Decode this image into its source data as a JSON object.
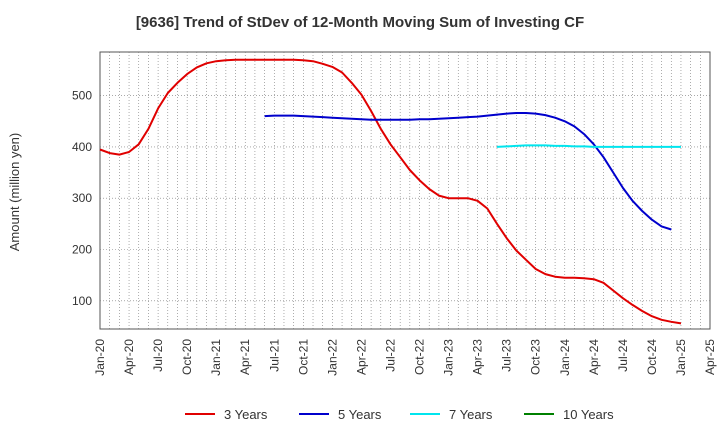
{
  "chart_data": {
    "type": "line",
    "title": "[9636]  Trend of StDev of 12-Month Moving Sum of Investing CF",
    "xlabel": "",
    "ylabel": "Amount (million yen)",
    "x_tick_labels": [
      "Jan-20",
      "Apr-20",
      "Jul-20",
      "Oct-20",
      "Jan-21",
      "Apr-21",
      "Jul-21",
      "Oct-21",
      "Jan-22",
      "Apr-22",
      "Jul-22",
      "Oct-22",
      "Jan-23",
      "Apr-23",
      "Jul-23",
      "Oct-23",
      "Jan-24",
      "Apr-24",
      "Jul-24",
      "Oct-24",
      "Jan-25",
      "Apr-25"
    ],
    "y_ticks": [
      100,
      200,
      300,
      400,
      500
    ],
    "ylim": [
      45,
      585
    ],
    "grid": true,
    "legend_position": "bottom",
    "series": [
      {
        "name": "3 Years",
        "color": "#e00000",
        "start_month": "Jan-20",
        "values": [
          395,
          388,
          385,
          390,
          405,
          435,
          475,
          505,
          525,
          542,
          555,
          563,
          567,
          569,
          570,
          570,
          570,
          570,
          570,
          570,
          570,
          569,
          567,
          562,
          556,
          545,
          525,
          502,
          470,
          435,
          405,
          380,
          355,
          335,
          318,
          305,
          300,
          300,
          300,
          295,
          280,
          250,
          222,
          198,
          180,
          162,
          152,
          147,
          145,
          145,
          144,
          142,
          135,
          120,
          105,
          92,
          80,
          70,
          63,
          59,
          56
        ]
      },
      {
        "name": "5 Years",
        "color": "#0000cc",
        "start_month": "Jun-21",
        "values": [
          460,
          461,
          461,
          461,
          460,
          459,
          458,
          457,
          456,
          455,
          454,
          453,
          453,
          453,
          453,
          453,
          454,
          454,
          455,
          456,
          457,
          458,
          459,
          461,
          463,
          465,
          466,
          466,
          465,
          462,
          457,
          450,
          440,
          425,
          405,
          380,
          350,
          320,
          295,
          275,
          258,
          245,
          239
        ]
      },
      {
        "name": "7 Years",
        "color": "#00e5ee",
        "start_month": "Jun-23",
        "values": [
          400,
          401,
          402,
          403,
          403,
          403,
          402,
          402,
          401,
          401,
          400,
          400,
          400,
          400,
          400,
          400,
          400,
          400,
          400,
          400
        ]
      },
      {
        "name": "10 Years",
        "color": "#008000",
        "start_month": "",
        "values": []
      }
    ]
  }
}
